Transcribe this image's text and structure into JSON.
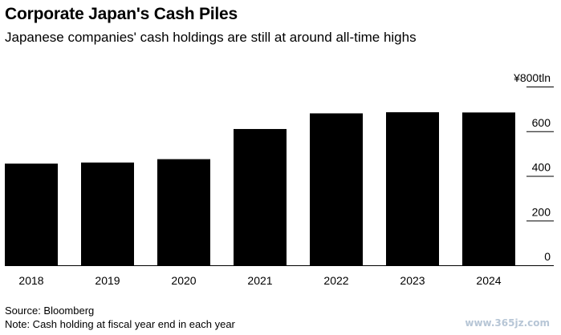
{
  "header": {
    "title": "Corporate Japan's Cash Piles",
    "subtitle": "Japanese companies' cash holdings are still at around all-time highs"
  },
  "footer": {
    "source": "Source: Bloomberg",
    "note": "Note: Cash holding at fiscal year end in each year"
  },
  "watermark": "www.365jz.com",
  "colors": {
    "bar": "#000000",
    "axis": "#000000",
    "background": "#ffffff"
  },
  "chart_data": {
    "type": "bar",
    "categories": [
      "2018",
      "2019",
      "2020",
      "2021",
      "2022",
      "2023",
      "2024"
    ],
    "values": [
      455,
      460,
      475,
      610,
      680,
      685,
      684
    ],
    "ylim": [
      0,
      800
    ],
    "yticks": [
      {
        "value": 0,
        "label": "0"
      },
      {
        "value": 200,
        "label": "200"
      },
      {
        "value": 400,
        "label": "400"
      },
      {
        "value": 600,
        "label": "600"
      },
      {
        "value": 800,
        "label": "¥800tln"
      }
    ],
    "y_axis_side": "right",
    "grid": false
  }
}
